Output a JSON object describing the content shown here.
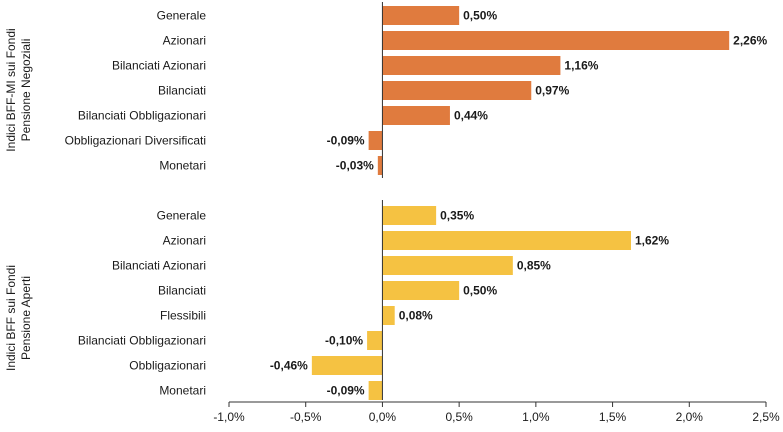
{
  "chart_data": {
    "type": "bar",
    "orientation": "horizontal",
    "xlim": [
      -1.0,
      2.5
    ],
    "x_ticks": [
      "-1,0%",
      "-0,5%",
      "0,0%",
      "0,5%",
      "1,0%",
      "1,5%",
      "2,0%",
      "2,5%"
    ],
    "x_tick_values": [
      -1.0,
      -0.5,
      0.0,
      0.5,
      1.0,
      1.5,
      2.0,
      2.5
    ],
    "grid": false,
    "groups": [
      {
        "label_line1": "Indici BFF-MI sui Fondi",
        "label_line2": "Pensione Negoziali",
        "color": "#e07b3e",
        "categories": [
          "Generale",
          "Azionari",
          "Bilanciati Azionari",
          "Bilanciati",
          "Bilanciati Obbligazionari",
          "Obbligazionari Diversificati",
          "Monetari"
        ],
        "values": [
          0.5,
          2.26,
          1.16,
          0.97,
          0.44,
          -0.09,
          -0.03
        ],
        "labels": [
          "0,50%",
          "2,26%",
          "1,16%",
          "0,97%",
          "0,44%",
          "-0,09%",
          "-0,03%"
        ]
      },
      {
        "label_line1": "Indici BFF sui Fondi",
        "label_line2": "Pensione Aperti",
        "color": "#f5c242",
        "categories": [
          "Generale",
          "Azionari",
          "Bilanciati Azionari",
          "Bilanciati",
          "Flessibili",
          "Bilanciati Obbligazionari",
          "Obbligazionari",
          "Monetari"
        ],
        "values": [
          0.35,
          1.62,
          0.85,
          0.5,
          0.08,
          -0.1,
          -0.46,
          -0.09
        ],
        "labels": [
          "0,35%",
          "1,62%",
          "0,85%",
          "0,50%",
          "0,08%",
          "-0,10%",
          "-0,46%",
          "-0,09%"
        ]
      }
    ]
  }
}
